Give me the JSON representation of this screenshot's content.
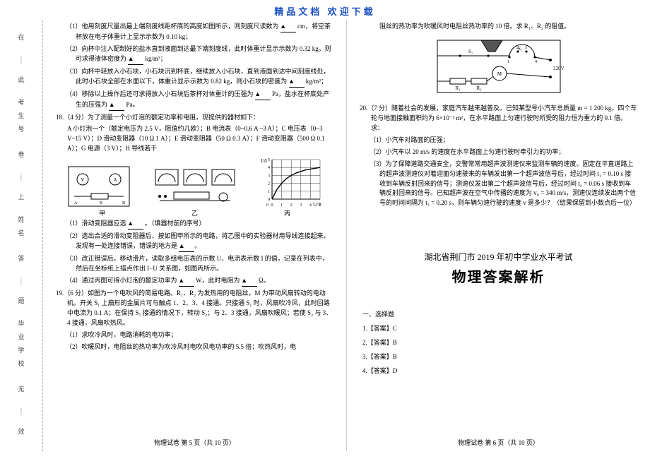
{
  "header": "精品文档    欢迎下载",
  "margin": {
    "labels": [
      "在",
      "此",
      "卷",
      "上",
      "答",
      "题",
      "无",
      "效"
    ],
    "fields": [
      "毕业学校",
      "姓名",
      "考生号"
    ]
  },
  "left": {
    "q17": {
      "p1": "（1）他用刻度尺量出最上端刻度线距杯底的高度如图所示，则刻度尺读数为",
      "p1b": "cm，将空茶杯放在电子体重计上显示示数为 0.10 kg；",
      "p2": "（2）向杯中注入配制好的盐水直到液面到达最下端刻度线，此时体重计显示示数为 0.32 kg，则可求得液体密度为",
      "p2u": "kg/m³；",
      "p3": "（3）向杯中轻放入小石块，小石块沉到杯底，继续放入小石块，直到液面到达中间刻度线处，此时小石块全部在水面以下，体重计显示示数为 0.82 kg，则小石块的密度为",
      "p3u": "kg/m³；",
      "p4": "（4）移除以上操作后还可求得放入小石块后茶杯对体重计的压强为",
      "p4b": "Pa，盐水在杯底处产生的压强为",
      "p4c": "Pa。"
    },
    "q18": {
      "stem": "18.（4 分）为了测量一个小灯泡的额定功率和电阻，现提供的器材如下：",
      "items": "A 小灯泡一个（额定电压为 2.5 V，阻值约几欧）；B 电流表（0~0.6 A ~3 A）；C 电压表（0~3 V~15 V）；D 滑动变阻器（10 Ω 1 A）；E 滑动变阻器（50 Ω 0.3 A）；F 滑动变阻器（500 Ω 0.1 A）；G 电源（3 V）；H 导线若干",
      "caps": [
        "甲",
        "乙",
        "丙"
      ],
      "sub1": "（1）滑动变阻器应选",
      "sub1b": "。（填器材前的序号）",
      "sub2": "（2）选出合适的滑动变阻器后，按如图甲所示的电路，将乙图中的实验器材用导线连接起来，发现有一处连接错误，错误的地方是",
      "sub3": "（3）改正错误后，移动滑片，读取多组电压表的示数 U、电流表示数 I 的值，记录在列表中，然后在坐标纸上描点作出 I−U 关系图，如图丙所示。",
      "sub4": "（4）通过丙图可得小灯泡的额定功率为",
      "sub4b": "W，此时电阻为",
      "sub4c": "Ω。",
      "chart": {
        "xlabel": "U/V",
        "ylabel": "I/A",
        "xmax": 5,
        "ymax": 5,
        "xticks": [
          0,
          1,
          2,
          3,
          4,
          5
        ],
        "yticks": [
          0,
          1,
          2,
          3,
          4,
          5
        ],
        "points_x": [
          0,
          0.5,
          1.0,
          1.5,
          2.0,
          2.5,
          3.0,
          3.5,
          4.0,
          4.5,
          5.0
        ],
        "points_y": [
          0,
          1.2,
          2.0,
          2.6,
          3.0,
          3.3,
          3.5,
          3.7,
          3.8,
          3.9,
          4.0
        ],
        "line_color": "#000000",
        "grid_color": "#000000",
        "bg": "#ffffff"
      }
    },
    "q19": {
      "stem": "19.（6 分）如图为一个电吹风的简易电路。R₁、R₂ 为发热用的电阻丝，M 为带动风扇转动的电动机。开关 S₁ 上扇形的金属片可与触点 1、2、3、4 接通。只接通 S₁ 时，风扇吹冷风，此时回路中电流为 0.1 A；在保持 S₁ 接通的情况下，转动 S₂；与 2、3 接通，风扇吹暖风；若使 S₂ 与 3、4 接通，风扇吹热风。",
      "sub1": "（1）求吹冷风时，电路消耗的电功率；",
      "sub2": "（2）吹暖风时，电阻丝的热功率为吹冷风时电吹风电功率的 5.5 倍；吹热风时，电"
    },
    "foot": "物理试卷  第 5 页（共 10 页）"
  },
  "right": {
    "cont19": "阻丝的热功率为吹暖风时电阻丝热功率的 10 倍。求 R₁、R₂ 的阻值。",
    "q20": {
      "stem": "20.（7 分）随着社会的发展，家庭汽车越来越普及。已知某型号小汽车总质量 m = 1 200 kg，四个车轮与地面接触面积约为 6×10⁻² m²，在水平路面上匀速行驶时所受的阻力恒为重力的 0.1 倍。求：",
      "sub1": "（1）小汽车对路面的压强；",
      "sub2": "（2）小汽车以 20 m/s 的速度在水平路面上匀速行驶时牵引力的功率；",
      "sub3": "（3）为了保障道路交通安全，交警常常用超声波测速仪来监测车辆的速度。固定在平直道路上的超声波测速仪对着迎面匀速驶来的车辆发出第一个超声波信号后，经过时间 t₁ = 0.10 s 接收到车辆反射回来的信号；测速仪发出第二个超声波信号后，经过时间 t₂ = 0.06 s 接收到车辆反射回来的信号。已知超声波在空气中传播的速度为 v₀ = 340 m/s，测速仪连续发出两个信号的时间间隔为 t₃ = 0.20 s，则车辆匀速行驶的速度 v 是多少？（结果保留到小数点后一位）"
    },
    "title1": "湖北省荆门市 2019 年初中学业水平考试",
    "title2": "物理答案解析",
    "answers": {
      "sec": "一、选择题",
      "a1": "1.【答案】C",
      "a2": "2.【答案】B",
      "a3": "3.【答案】B",
      "a4": "4.【答案】D"
    },
    "foot": "物理试卷  第 6 页（共 10 页）",
    "circuit": {
      "labels": [
        "S₁",
        "S₂",
        "R₁",
        "R₂",
        "M",
        "220V",
        "1",
        "2",
        "3",
        "4"
      ],
      "line_color": "#000000"
    }
  },
  "blank_glyph": "▲"
}
